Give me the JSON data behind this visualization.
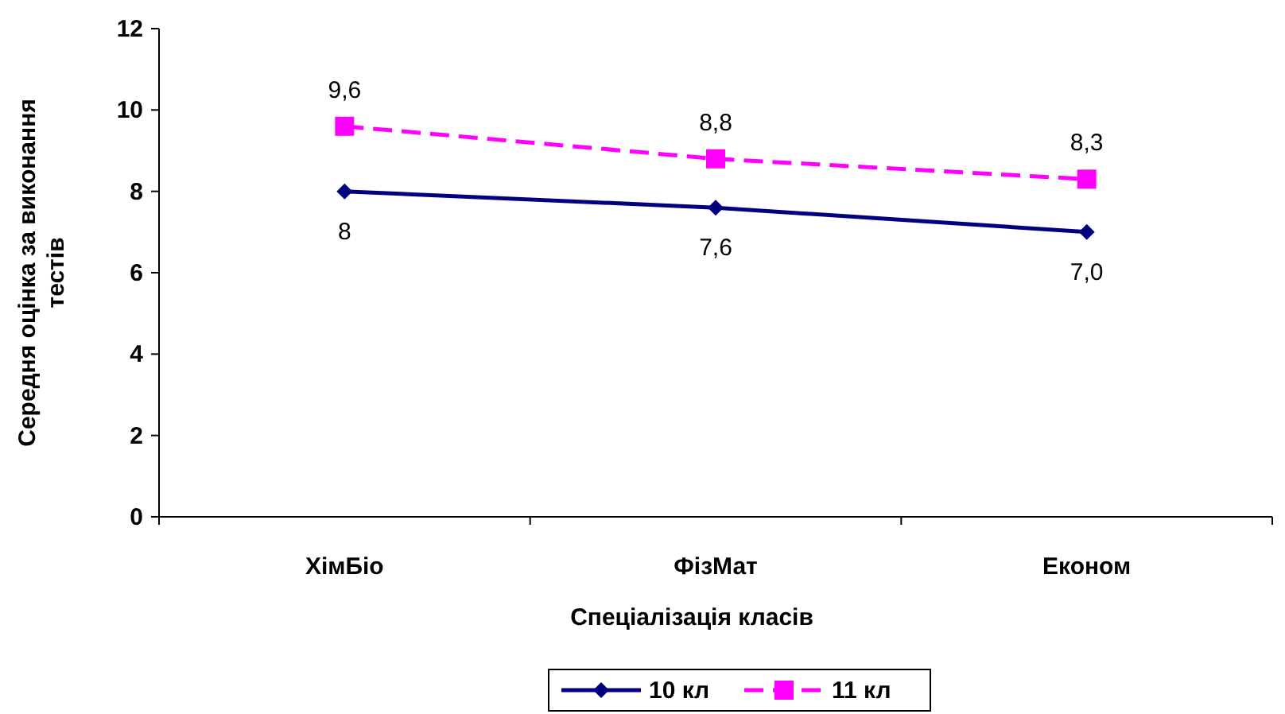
{
  "chart_data": {
    "type": "line",
    "xlabel": "Спеціалізація класів",
    "ylabel": "Середня оцінка за виконання тестів",
    "categories": [
      "ХімБіо",
      "ФізМат",
      "Економ"
    ],
    "series": [
      {
        "name": "10 кл",
        "color": "#000080",
        "values": [
          8,
          7.6,
          7.0
        ],
        "value_labels": [
          "8",
          "7,6",
          "7,0"
        ],
        "marker": "diamond",
        "line_style": "solid"
      },
      {
        "name": "11 кл",
        "color": "#ff00ff",
        "values": [
          9.6,
          8.8,
          8.3
        ],
        "value_labels": [
          "9,6",
          "8,8",
          "8,3"
        ],
        "marker": "square",
        "line_style": "dashed"
      }
    ],
    "ylim": [
      0,
      12
    ],
    "yticks": [
      0,
      2,
      4,
      6,
      8,
      10,
      12
    ],
    "grid": false,
    "legend": "bottom"
  }
}
